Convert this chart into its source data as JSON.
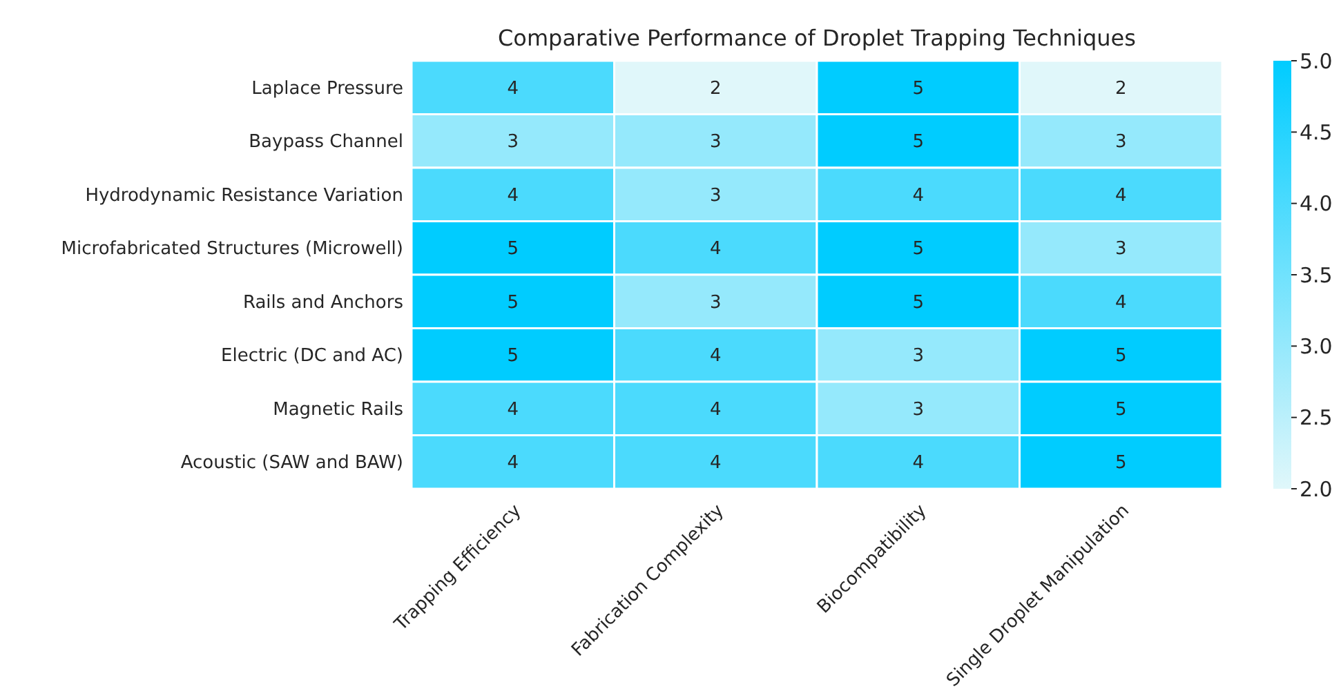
{
  "chart_data": {
    "type": "heatmap",
    "title": "Comparative Performance of Droplet Trapping Techniques",
    "categories": [
      "Trapping Efficiency",
      "Fabrication Complexity",
      "Biocompatibility",
      "Single Droplet Manipulation"
    ],
    "y_categories": [
      "Laplace Pressure",
      "Baypass Channel",
      "Hydrodynamic Resistance Variation",
      "Microfabricated Structures (Microwell)",
      "Rails and Anchors",
      "Electric (DC and AC)",
      "Magnetic Rails",
      "Acoustic (SAW and BAW)"
    ],
    "cells": [
      [
        4,
        2,
        5,
        2
      ],
      [
        3,
        3,
        5,
        3
      ],
      [
        4,
        3,
        4,
        4
      ],
      [
        5,
        4,
        5,
        3
      ],
      [
        5,
        3,
        5,
        4
      ],
      [
        5,
        4,
        3,
        5
      ],
      [
        4,
        4,
        3,
        5
      ],
      [
        4,
        4,
        4,
        5
      ]
    ],
    "data_labels": true,
    "colors": [
      "#e0f7fa",
      "#00ccff"
    ],
    "clim": [
      2,
      5
    ],
    "cticks": [
      {
        "value": 2,
        "label": "2.0"
      },
      {
        "value": 2.5,
        "label": "2.5"
      },
      {
        "value": 3,
        "label": "3.0"
      },
      {
        "value": 3.5,
        "label": "3.5"
      },
      {
        "value": 4,
        "label": "4.0"
      },
      {
        "value": 4.5,
        "label": "4.5"
      },
      {
        "value": 5,
        "label": "5.0"
      }
    ]
  }
}
